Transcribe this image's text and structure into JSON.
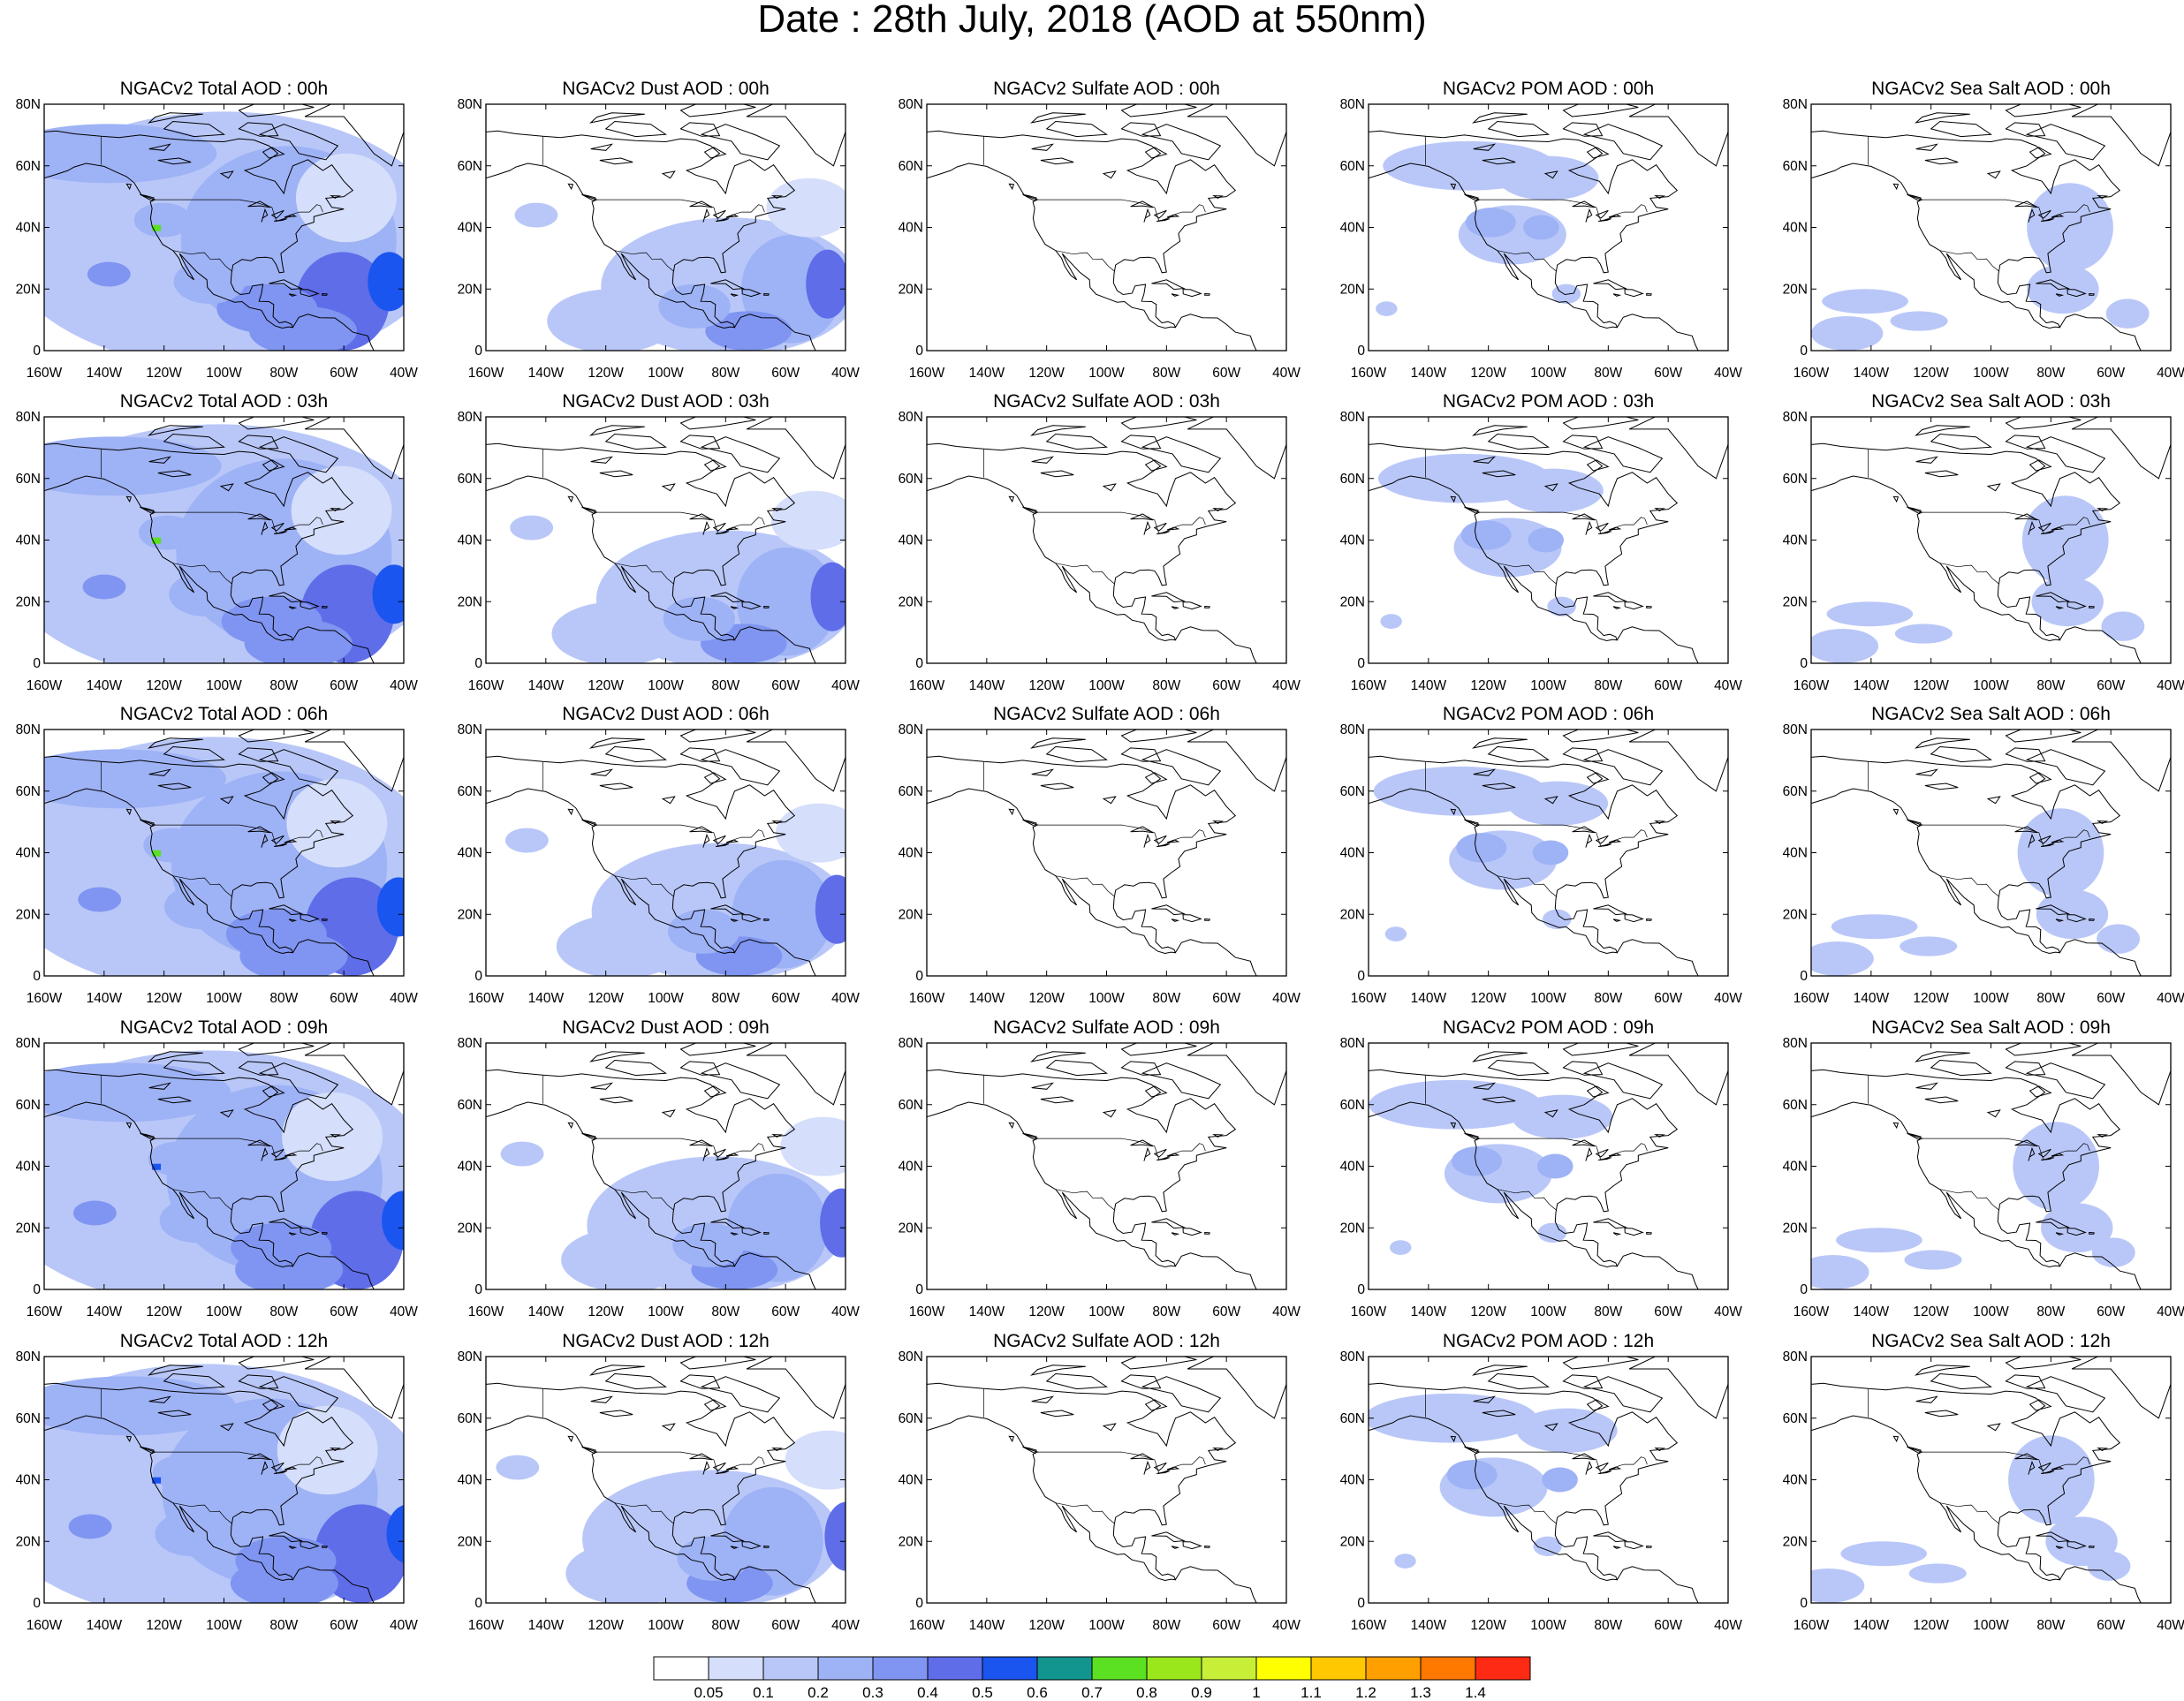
{
  "title": "Date : 28th July, 2018 (AOD at 550nm)",
  "x_tick_labels": [
    "160W",
    "140W",
    "120W",
    "100W",
    "80W",
    "60W",
    "40W"
  ],
  "y_tick_labels": [
    "0",
    "20N",
    "40N",
    "60N",
    "80N"
  ],
  "panels": [
    [
      "NGACv2 Total AOD : 00h",
      "NGACv2 Dust AOD : 00h",
      "NGACv2 Sulfate AOD : 00h",
      "NGACv2 POM AOD : 00h",
      "NGACv2 Sea Salt AOD : 00h"
    ],
    [
      "NGACv2 Total AOD : 03h",
      "NGACv2 Dust AOD : 03h",
      "NGACv2 Sulfate AOD : 03h",
      "NGACv2 POM AOD : 03h",
      "NGACv2 Sea Salt AOD : 03h"
    ],
    [
      "NGACv2 Total AOD : 06h",
      "NGACv2 Dust AOD : 06h",
      "NGACv2 Sulfate AOD : 06h",
      "NGACv2 POM AOD : 06h",
      "NGACv2 Sea Salt AOD : 06h"
    ],
    [
      "NGACv2 Total AOD : 09h",
      "NGACv2 Dust AOD : 09h",
      "NGACv2 Sulfate AOD : 09h",
      "NGACv2 POM AOD : 09h",
      "NGACv2 Sea Salt  AOD : 09h"
    ],
    [
      "NGACv2 Total AOD  : 12h",
      "NGACv2 Dust AOD : 12h",
      "NGACv2 Sulfate AOD : 12h",
      "NGACv2 POM  AOD : 12h",
      "NGACv2 Sea Salt  AOD : 12h"
    ]
  ],
  "colorbar": {
    "labels": [
      "0.05",
      "0.1",
      "0.2",
      "0.3",
      "0.4",
      "0.5",
      "0.6",
      "0.7",
      "0.8",
      "0.9",
      "1",
      "1.1",
      "1.2",
      "1.3",
      "1.4"
    ],
    "colors": [
      "#ffffff",
      "#d5defa",
      "#b9c7f8",
      "#9eb2f6",
      "#7f95f1",
      "#5f6de9",
      "#1a55ef",
      "#12958f",
      "#5be022",
      "#9ae81c",
      "#c8ef38",
      "#ffff00",
      "#ffc800",
      "#ffa000",
      "#ff7800",
      "#ff2a14"
    ]
  }
}
